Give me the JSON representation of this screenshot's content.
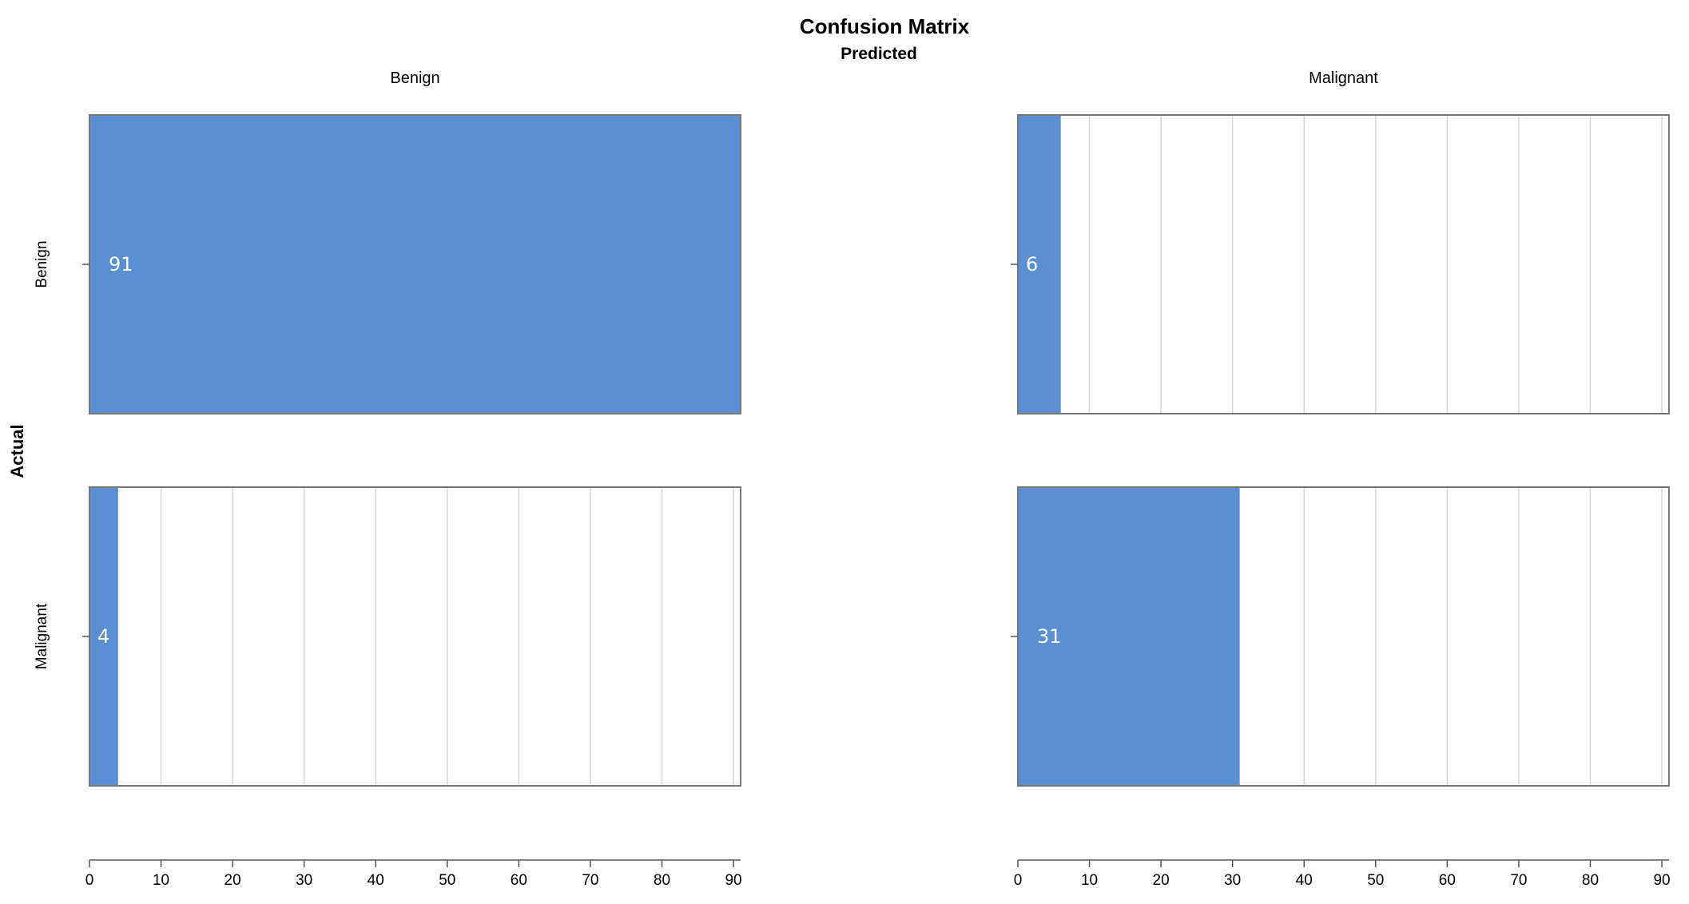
{
  "chart_data": {
    "type": "bar",
    "title": "Confusion Matrix",
    "xlabel": "Predicted",
    "ylabel": "Actual",
    "columns": [
      "Benign",
      "Malignant"
    ],
    "rows": [
      "Benign",
      "Malignant"
    ],
    "xlim": [
      0,
      91
    ],
    "ticks": [
      0,
      10,
      20,
      30,
      40,
      50,
      60,
      70,
      80,
      90
    ],
    "cells": [
      {
        "actual": "Benign",
        "predicted": "Benign",
        "value": 91,
        "label": "91"
      },
      {
        "actual": "Benign",
        "predicted": "Malignant",
        "value": 6,
        "label": "6"
      },
      {
        "actual": "Malignant",
        "predicted": "Benign",
        "value": 4,
        "label": "4"
      },
      {
        "actual": "Malignant",
        "predicted": "Malignant",
        "value": 31,
        "label": "31"
      }
    ],
    "bar_color": "#5b8fd4",
    "grid": true
  }
}
